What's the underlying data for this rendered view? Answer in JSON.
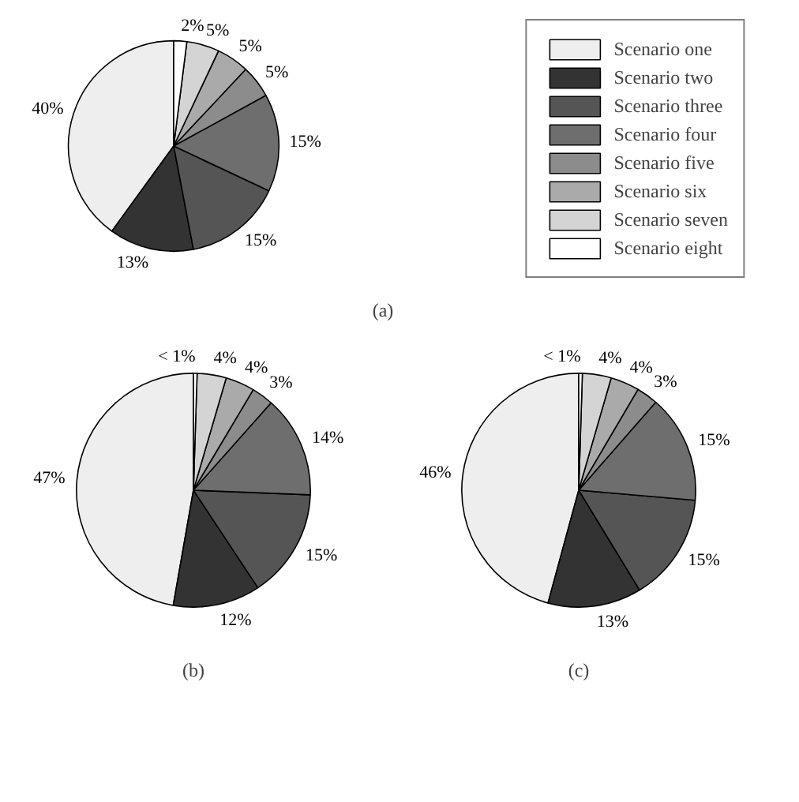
{
  "chart_data": [
    {
      "type": "pie",
      "title": "(a)",
      "legend": "right",
      "categories": [
        "Scenario one",
        "Scenario two",
        "Scenario three",
        "Scenario four",
        "Scenario five",
        "Scenario six",
        "Scenario seven",
        "Scenario eight"
      ],
      "values": [
        40,
        13,
        15,
        15,
        5,
        5,
        5,
        2
      ],
      "value_labels": [
        "40%",
        "13%",
        "15%",
        "15%",
        "5%",
        "5%",
        "5%",
        "2%"
      ],
      "colors": [
        "#eeeeee",
        "#333333",
        "#555555",
        "#6e6e6e",
        "#8c8c8c",
        "#aaaaaa",
        "#d4d4d4",
        "#ffffff"
      ]
    },
    {
      "type": "pie",
      "title": "(b)",
      "categories": [
        null,
        null,
        null,
        null,
        null,
        null,
        null,
        null
      ],
      "values": [
        47,
        12,
        15,
        14,
        3,
        4,
        4,
        0.5
      ],
      "value_labels": [
        "47%",
        "12%",
        "15%",
        "14%",
        "3%",
        "4%",
        "4%",
        "< 1%"
      ],
      "colors": [
        "#eeeeee",
        "#333333",
        "#555555",
        "#6e6e6e",
        "#8c8c8c",
        "#aaaaaa",
        "#d4d4d4",
        "#ffffff"
      ]
    },
    {
      "type": "pie",
      "title": "(c)",
      "categories": [
        null,
        null,
        null,
        null,
        null,
        null,
        null,
        null
      ],
      "values": [
        46,
        13,
        15,
        15,
        3,
        4,
        4,
        0.5
      ],
      "value_labels": [
        "46%",
        "13%",
        "15%",
        "15%",
        "3%",
        "4%",
        "4%",
        "< 1%"
      ],
      "colors": [
        "#eeeeee",
        "#333333",
        "#555555",
        "#6e6e6e",
        "#8c8c8c",
        "#aaaaaa",
        "#d4d4d4",
        "#ffffff"
      ]
    }
  ]
}
